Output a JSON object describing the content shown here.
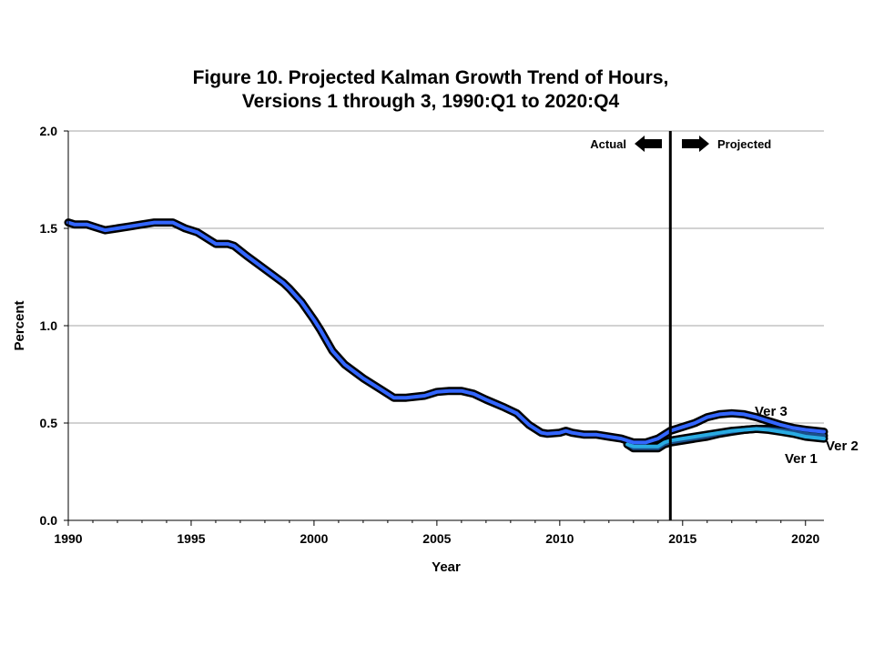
{
  "chart_data": {
    "type": "line",
    "title_lines": [
      "Figure 10. Projected Kalman Growth Trend of Hours,",
      "Versions 1 through 3, 1990:Q1 to 2020:Q4"
    ],
    "xlabel": "Year",
    "ylabel": "Percent",
    "xlim": [
      1990,
      2020.75
    ],
    "ylim": [
      0,
      2.0
    ],
    "x_ticks": [
      1990,
      1995,
      2000,
      2005,
      2010,
      2015,
      2020
    ],
    "y_ticks": [
      0.0,
      0.5,
      1.0,
      1.5,
      2.0
    ],
    "y_tick_labels": [
      "0.0",
      "0.5",
      "1.0",
      "1.5",
      "2.0"
    ],
    "grid": "horizontal",
    "divider_year": 2014.5,
    "actual_label": "Actual",
    "projected_label": "Projected",
    "colors": {
      "ver1": "#1a4f8a",
      "ver2": "#29abe2",
      "ver3": "#3366ff",
      "outline": "#000000",
      "grid": "#a6a6a6"
    },
    "series": [
      {
        "name": "Ver 1",
        "color": "#1a4f8a",
        "points": [
          [
            2012.75,
            0.39
          ],
          [
            2013.0,
            0.37
          ],
          [
            2013.5,
            0.37
          ],
          [
            2014.0,
            0.37
          ],
          [
            2014.25,
            0.39
          ],
          [
            2014.5,
            0.4
          ],
          [
            2015.0,
            0.41
          ],
          [
            2015.5,
            0.42
          ],
          [
            2016.0,
            0.43
          ],
          [
            2016.5,
            0.445
          ],
          [
            2017.0,
            0.455
          ],
          [
            2017.5,
            0.465
          ],
          [
            2018.0,
            0.47
          ],
          [
            2018.5,
            0.47
          ],
          [
            2019.0,
            0.465
          ],
          [
            2019.5,
            0.455
          ],
          [
            2020.0,
            0.445
          ],
          [
            2020.75,
            0.435
          ]
        ]
      },
      {
        "name": "Ver 2",
        "color": "#29abe2",
        "points": [
          [
            2012.75,
            0.39
          ],
          [
            2013.0,
            0.38
          ],
          [
            2013.5,
            0.38
          ],
          [
            2014.0,
            0.38
          ],
          [
            2014.25,
            0.4
          ],
          [
            2014.5,
            0.41
          ],
          [
            2015.0,
            0.42
          ],
          [
            2015.5,
            0.43
          ],
          [
            2016.0,
            0.44
          ],
          [
            2016.5,
            0.45
          ],
          [
            2017.0,
            0.46
          ],
          [
            2017.5,
            0.465
          ],
          [
            2018.0,
            0.47
          ],
          [
            2018.5,
            0.465
          ],
          [
            2019.0,
            0.455
          ],
          [
            2019.5,
            0.445
          ],
          [
            2020.0,
            0.43
          ],
          [
            2020.75,
            0.42
          ]
        ]
      },
      {
        "name": "Ver 3",
        "color": "#3366ff",
        "points": [
          [
            1990.0,
            1.53
          ],
          [
            1990.25,
            1.52
          ],
          [
            1990.75,
            1.52
          ],
          [
            1991.25,
            1.5
          ],
          [
            1991.5,
            1.49
          ],
          [
            1992.0,
            1.5
          ],
          [
            1992.5,
            1.51
          ],
          [
            1993.0,
            1.52
          ],
          [
            1993.5,
            1.53
          ],
          [
            1994.0,
            1.53
          ],
          [
            1994.25,
            1.53
          ],
          [
            1994.75,
            1.5
          ],
          [
            1995.25,
            1.48
          ],
          [
            1995.75,
            1.44
          ],
          [
            1996.0,
            1.42
          ],
          [
            1996.5,
            1.42
          ],
          [
            1996.75,
            1.41
          ],
          [
            1997.25,
            1.36
          ],
          [
            1998.0,
            1.29
          ],
          [
            1998.75,
            1.22
          ],
          [
            1999.0,
            1.19
          ],
          [
            1999.5,
            1.12
          ],
          [
            2000.0,
            1.03
          ],
          [
            2000.25,
            0.98
          ],
          [
            2000.75,
            0.87
          ],
          [
            2001.25,
            0.8
          ],
          [
            2002.0,
            0.73
          ],
          [
            2002.75,
            0.67
          ],
          [
            2003.25,
            0.63
          ],
          [
            2003.75,
            0.63
          ],
          [
            2004.5,
            0.64
          ],
          [
            2005.0,
            0.66
          ],
          [
            2005.5,
            0.665
          ],
          [
            2006.0,
            0.665
          ],
          [
            2006.5,
            0.65
          ],
          [
            2007.0,
            0.62
          ],
          [
            2007.75,
            0.58
          ],
          [
            2008.25,
            0.55
          ],
          [
            2008.75,
            0.49
          ],
          [
            2009.25,
            0.45
          ],
          [
            2009.5,
            0.445
          ],
          [
            2010.0,
            0.45
          ],
          [
            2010.25,
            0.46
          ],
          [
            2010.5,
            0.45
          ],
          [
            2011.0,
            0.44
          ],
          [
            2011.5,
            0.44
          ],
          [
            2012.0,
            0.43
          ],
          [
            2012.5,
            0.42
          ],
          [
            2013.0,
            0.4
          ],
          [
            2013.5,
            0.4
          ],
          [
            2014.0,
            0.42
          ],
          [
            2014.5,
            0.46
          ],
          [
            2015.0,
            0.48
          ],
          [
            2015.5,
            0.5
          ],
          [
            2016.0,
            0.53
          ],
          [
            2016.5,
            0.545
          ],
          [
            2017.0,
            0.55
          ],
          [
            2017.5,
            0.545
          ],
          [
            2018.0,
            0.53
          ],
          [
            2018.5,
            0.51
          ],
          [
            2019.0,
            0.49
          ],
          [
            2019.5,
            0.475
          ],
          [
            2020.0,
            0.465
          ],
          [
            2020.75,
            0.455
          ]
        ]
      }
    ]
  }
}
